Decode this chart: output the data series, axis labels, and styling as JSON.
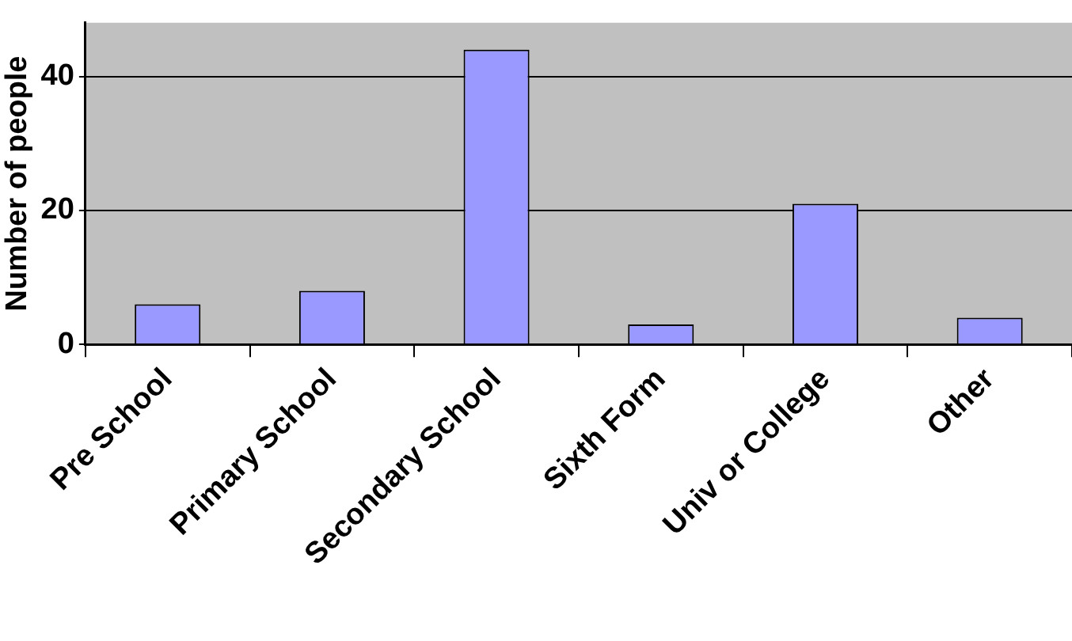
{
  "chart_data": {
    "type": "bar",
    "ylabel": "Number of people",
    "categories": [
      "Pre School",
      "Primary School",
      "Secondary School",
      "Sixth Form",
      "Univ or College",
      "Other"
    ],
    "values": [
      6,
      8,
      44,
      3,
      21,
      4
    ],
    "color": "#9999ff",
    "ylim": [
      0,
      48
    ],
    "yticks": [
      0,
      20,
      40
    ],
    "grid": "y"
  }
}
